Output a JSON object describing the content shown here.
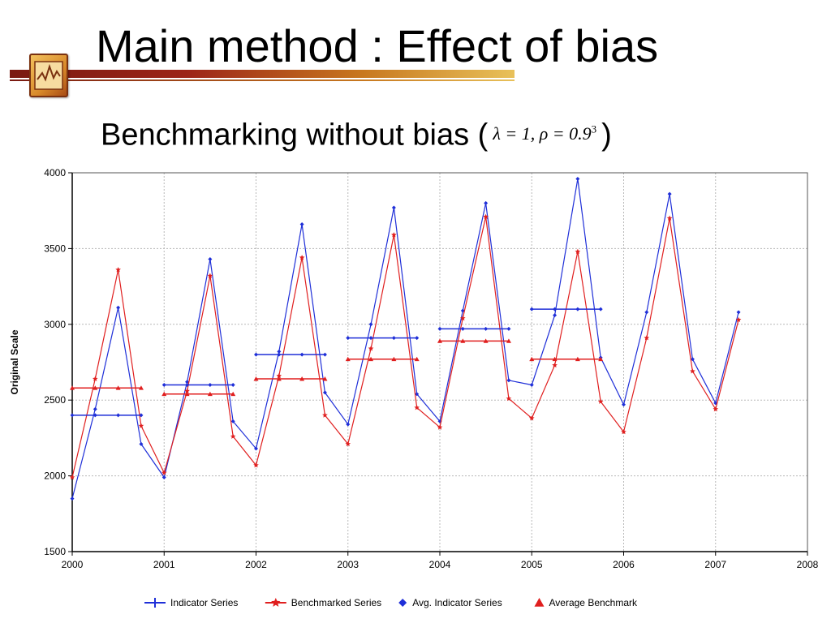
{
  "slide": {
    "title": "Main method : Effect of bias",
    "subtitle_prefix": "Benchmarking without bias (",
    "formula": "λ = 1, ρ = 0.9",
    "formula_exponent": "3",
    "subtitle_suffix": ")"
  },
  "chart_data": {
    "type": "line",
    "title": "",
    "xlabel": "",
    "ylabel": "Original Scale",
    "xlim": [
      2000,
      2008
    ],
    "ylim": [
      1500,
      4000
    ],
    "x_ticks": [
      2000,
      2001,
      2002,
      2003,
      2004,
      2005,
      2006,
      2007,
      2008
    ],
    "y_ticks": [
      1500,
      2000,
      2500,
      3000,
      3500,
      4000
    ],
    "grid": true,
    "legend_position": "bottom",
    "colors": {
      "indicator": "#1f2fd8",
      "benchmarked": "#e01f1f"
    },
    "series": [
      {
        "name": "Indicator Series",
        "kind": "line-plus",
        "color": "#1f2fd8",
        "x": [
          2000,
          2000.25,
          2000.5,
          2000.75,
          2001,
          2001.25,
          2001.5,
          2001.75,
          2002,
          2002.25,
          2002.5,
          2002.75,
          2003,
          2003.25,
          2003.5,
          2003.75,
          2004,
          2004.25,
          2004.5,
          2004.75,
          2005,
          2005.25,
          2005.5,
          2005.75,
          2006,
          2006.25,
          2006.5,
          2006.75,
          2007,
          2007.25
        ],
        "y": [
          1850,
          2440,
          3110,
          2210,
          1990,
          2620,
          3430,
          2360,
          2180,
          2820,
          3660,
          2550,
          2340,
          3000,
          3770,
          2540,
          2360,
          3090,
          3800,
          2630,
          2600,
          3060,
          3960,
          2780,
          2470,
          3080,
          3860,
          2770,
          2480,
          3080
        ]
      },
      {
        "name": "Benchmarked Series",
        "kind": "line-star",
        "color": "#e01f1f",
        "x": [
          2000,
          2000.25,
          2000.5,
          2000.75,
          2001,
          2001.25,
          2001.5,
          2001.75,
          2002,
          2002.25,
          2002.5,
          2002.75,
          2003,
          2003.25,
          2003.5,
          2003.75,
          2004,
          2004.25,
          2004.5,
          2004.75,
          2005,
          2005.25,
          2005.5,
          2005.75,
          2006,
          2006.25,
          2006.5,
          2006.75,
          2007,
          2007.25
        ],
        "y": [
          1990,
          2640,
          3360,
          2330,
          2020,
          2560,
          3320,
          2260,
          2070,
          2660,
          3440,
          2400,
          2210,
          2840,
          3590,
          2450,
          2320,
          3040,
          3710,
          2510,
          2380,
          2730,
          3480,
          2490,
          2290,
          2910,
          3700,
          2690,
          2440,
          3030
        ]
      },
      {
        "name": "Avg. Indicator Series",
        "kind": "step-diamond",
        "color": "#1f2fd8",
        "x_start": [
          2000,
          2001,
          2002,
          2003,
          2004,
          2005
        ],
        "y": [
          2400,
          2600,
          2800,
          2910,
          2970,
          3100
        ]
      },
      {
        "name": "Average Benchmark",
        "kind": "step-triangle",
        "color": "#e01f1f",
        "x_start": [
          2000,
          2001,
          2002,
          2003,
          2004,
          2005
        ],
        "y": [
          2580,
          2540,
          2640,
          2770,
          2890,
          2770
        ]
      }
    ]
  }
}
